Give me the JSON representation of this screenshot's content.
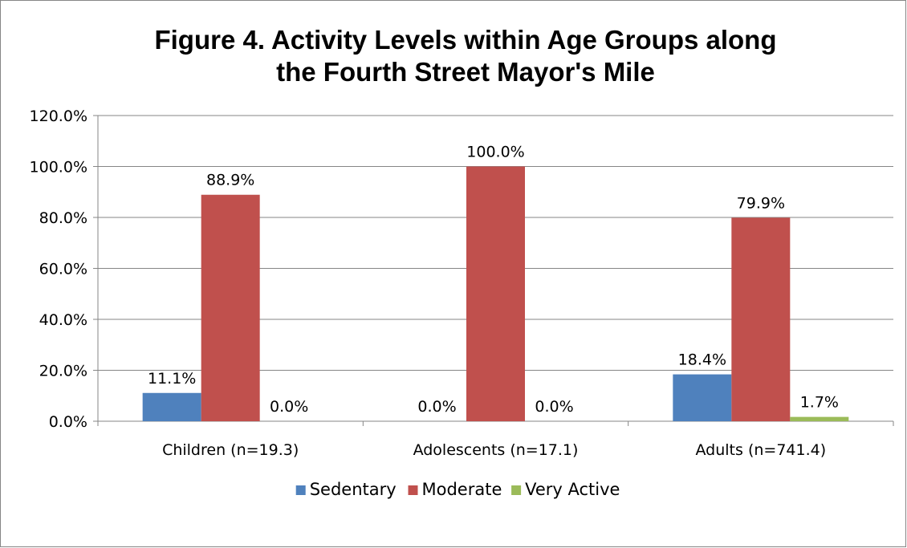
{
  "chart_data": {
    "type": "bar",
    "title_lines": [
      "Figure 4. Activity Levels within Age Groups along",
      "the Fourth Street Mayor's Mile"
    ],
    "categories": [
      "Children (n=19.3)",
      "Adolescents (n=17.1)",
      "Adults (n=741.4)"
    ],
    "series": [
      {
        "name": "Sedentary",
        "color": "#4F81BD",
        "values": [
          11.1,
          0.0,
          18.4
        ]
      },
      {
        "name": "Moderate",
        "color": "#C0504D",
        "values": [
          88.9,
          100.0,
          79.9
        ]
      },
      {
        "name": "Very Active",
        "color": "#9BBB59",
        "values": [
          0.0,
          0.0,
          1.7
        ]
      }
    ],
    "data_labels": [
      [
        "11.1%",
        "0.0%",
        "18.4%"
      ],
      [
        "88.9%",
        "100.0%",
        "79.9%"
      ],
      [
        "0.0%",
        "0.0%",
        "1.7%"
      ]
    ],
    "y_ticks": [
      "0.0%",
      "20.0%",
      "40.0%",
      "60.0%",
      "80.0%",
      "100.0%",
      "120.0%"
    ],
    "ylim": [
      0,
      120
    ],
    "grid": true,
    "legend_position": "bottom"
  }
}
